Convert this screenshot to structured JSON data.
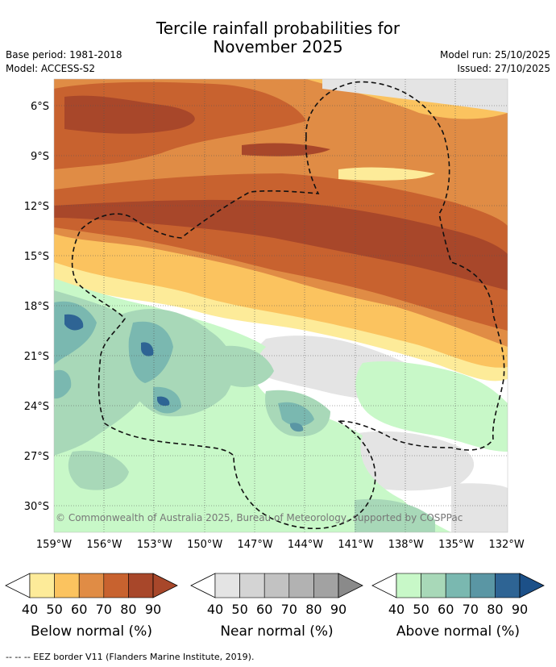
{
  "title_line1": "Tercile rainfall probabilities for",
  "title_line2": "November 2025",
  "base_period": "Base period: 1981-2018",
  "model": "Model: ACCESS-S2",
  "model_run": "Model run: 25/10/2025",
  "issued": "Issued: 27/10/2025",
  "lat_labels": [
    "6°S",
    "9°S",
    "12°S",
    "15°S",
    "18°S",
    "21°S",
    "24°S",
    "27°S",
    "30°S"
  ],
  "lon_labels": [
    "159°W",
    "156°W",
    "153°W",
    "150°W",
    "147°W",
    "144°W",
    "141°W",
    "138°W",
    "135°W",
    "132°W"
  ],
  "copyright": "© Commonwealth of Australia 2025, Bureau of Meteorology, supported by COSPPac",
  "legends": [
    {
      "name": "Below normal (%)",
      "ticks": [
        "40",
        "50",
        "60",
        "70",
        "80",
        "90"
      ],
      "colors": [
        "#fdeb99",
        "#fbc35f",
        "#e08c45",
        "#c8622f",
        "#a8472a",
        "#a8472a"
      ]
    },
    {
      "name": "Near normal (%)",
      "ticks": [
        "40",
        "50",
        "60",
        "70",
        "80",
        "90"
      ],
      "colors": [
        "#e4e4e4",
        "#d4d4d4",
        "#c2c2c2",
        "#b2b2b2",
        "#a2a2a2",
        "#8a8a8a"
      ]
    },
    {
      "name": "Above normal (%)",
      "ticks": [
        "40",
        "50",
        "60",
        "70",
        "80",
        "90"
      ],
      "colors": [
        "#c8f8c8",
        "#a8d8b8",
        "#7ab8b0",
        "#5a96a4",
        "#2e6494",
        "#1c5088"
      ]
    }
  ],
  "footer": "-- -- -- EEZ border V11 (Flanders Marine Institute, 2019)."
}
